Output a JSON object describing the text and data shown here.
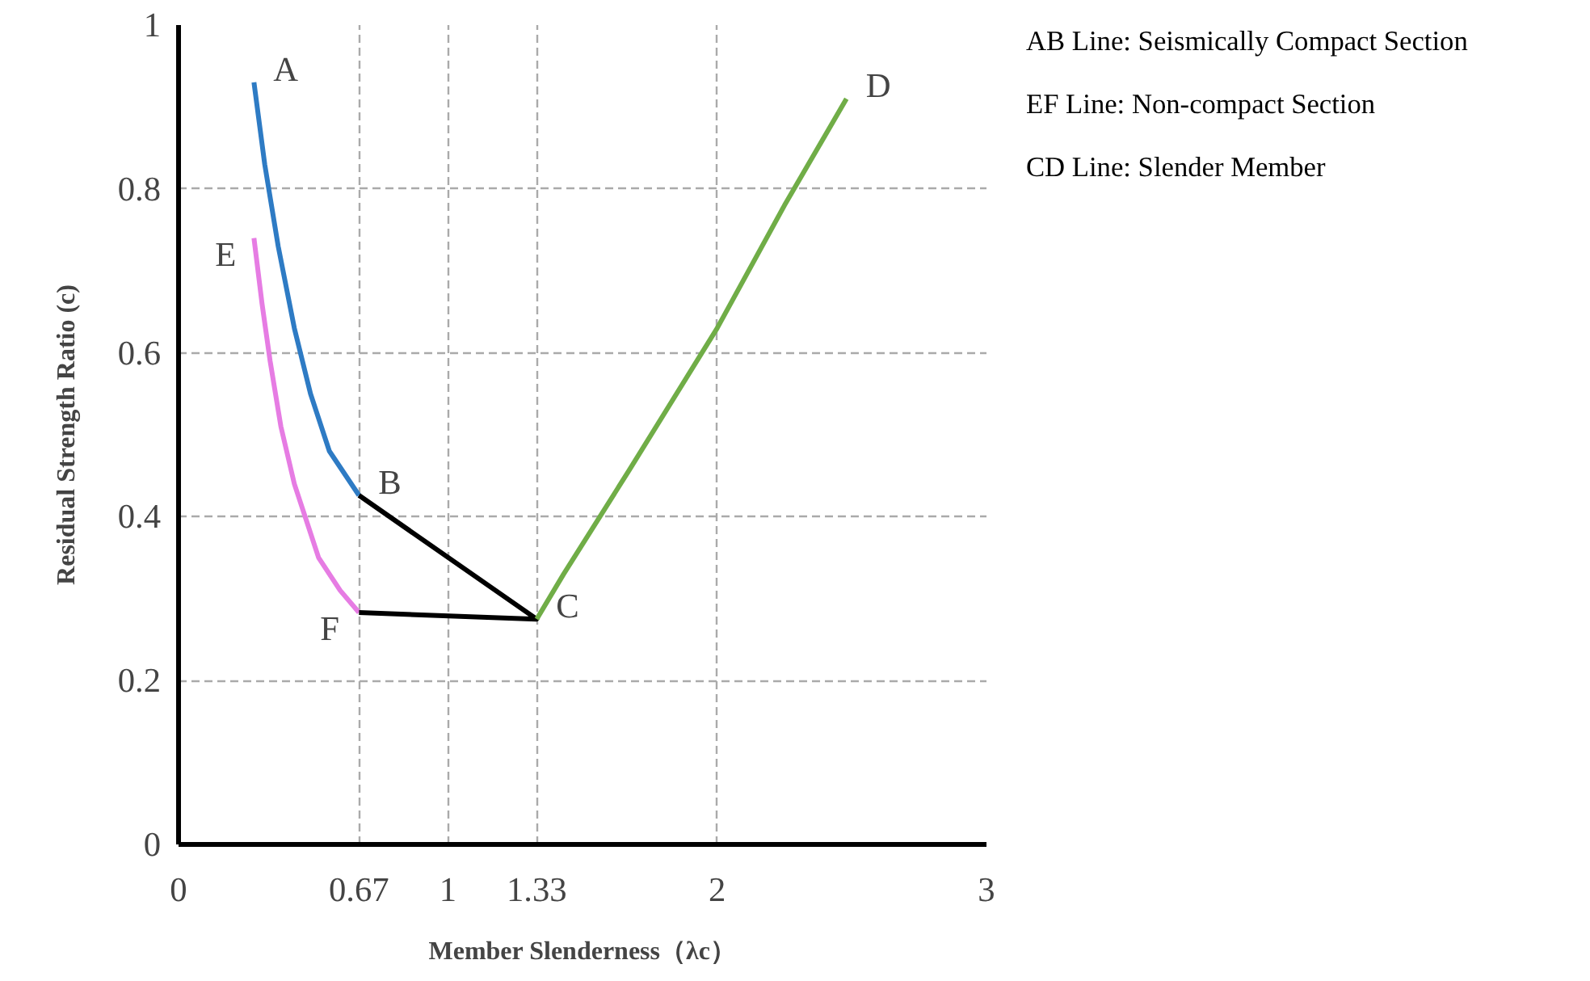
{
  "chart_data": {
    "type": "line",
    "xlabel": "Member Slenderness（λc）",
    "ylabel": "Residual Strength Ratio (c)",
    "xlim": [
      0,
      3
    ],
    "ylim": [
      0,
      1
    ],
    "xticks": [
      0,
      0.67,
      1,
      1.33,
      2,
      3
    ],
    "yticks": [
      0,
      0.2,
      0.4,
      0.6,
      0.8,
      1
    ],
    "grid": true,
    "marker": "none",
    "line_style": "solid",
    "series": [
      {
        "color": "#2e7bc4",
        "x": [
          0.28,
          0.32,
          0.37,
          0.43,
          0.49,
          0.56,
          0.67
        ],
        "values": [
          0.93,
          0.83,
          0.73,
          0.63,
          0.55,
          0.48,
          0.426
        ]
      },
      {
        "color": "#e67ce3",
        "x": [
          0.28,
          0.31,
          0.34,
          0.38,
          0.43,
          0.48,
          0.52,
          0.6,
          0.67
        ],
        "values": [
          0.74,
          0.66,
          0.59,
          0.51,
          0.44,
          0.39,
          0.35,
          0.31,
          0.283
        ]
      },
      {
        "color": "#000000",
        "x": [
          0.67,
          1.33,
          0.67
        ],
        "values": [
          0.426,
          0.275,
          0.283
        ]
      },
      {
        "color": "#70ad47",
        "x": [
          1.33,
          1.43,
          1.67,
          2.0,
          2.25,
          2.48
        ],
        "values": [
          0.275,
          0.33,
          0.455,
          0.63,
          0.78,
          0.91
        ]
      }
    ],
    "annotations": [
      {
        "text": "A",
        "x": 0.28,
        "y": 0.93
      },
      {
        "text": "B",
        "x": 0.67,
        "y": 0.426
      },
      {
        "text": "C",
        "x": 1.33,
        "y": 0.275
      },
      {
        "text": "D",
        "x": 2.48,
        "y": 0.91
      },
      {
        "text": "E",
        "x": 0.28,
        "y": 0.74
      },
      {
        "text": "F",
        "x": 0.67,
        "y": 0.283
      },
      "AB Line: Seismically Compact Section",
      "EF Line: Non-compact Section",
      "CD Line: Slender Member"
    ]
  }
}
